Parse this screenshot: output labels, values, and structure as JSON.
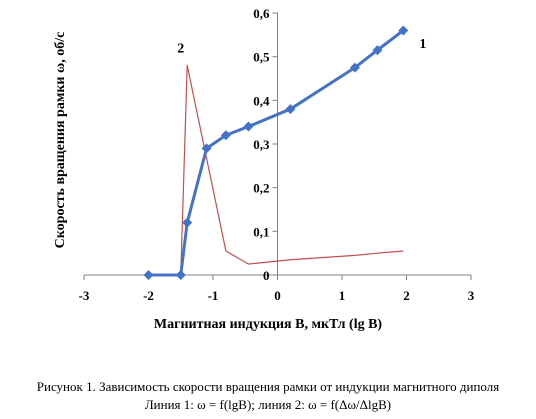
{
  "chart_data": {
    "type": "line",
    "title": "",
    "xlabel": "Магнитная индукция В, мкТл (lg B)",
    "ylabel": "Скорость вращения рамки ω, об/с",
    "xlim": [
      -3,
      3
    ],
    "ylim": [
      0,
      0.6
    ],
    "x_ticks": [
      "-3",
      "-2",
      "-1",
      "0",
      "1",
      "2",
      "3"
    ],
    "y_ticks": [
      "0",
      "0,1",
      "0,2",
      "0,3",
      "0,4",
      "0,5",
      "0,6"
    ],
    "grid": false,
    "series": [
      {
        "name": "1",
        "color": "#4472C4",
        "markers": true,
        "x": [
          -2.0,
          -1.5,
          -1.4,
          -1.1,
          -0.8,
          -0.45,
          0.2,
          1.2,
          1.55,
          1.95
        ],
        "y": [
          0.0,
          0.0,
          0.12,
          0.29,
          0.32,
          0.34,
          0.38,
          0.475,
          0.515,
          0.56
        ]
      },
      {
        "name": "2",
        "color": "#C0504D",
        "markers": false,
        "x": [
          -2.0,
          -1.5,
          -1.4,
          -0.8,
          -0.45,
          0.2,
          1.2,
          1.55,
          1.95
        ],
        "y": [
          0.0,
          0.0,
          0.48,
          0.055,
          0.025,
          0.035,
          0.045,
          0.05,
          0.055
        ]
      }
    ]
  },
  "caption": {
    "line1": "Рисунок 1. Зависимость скорости вращения рамки от индукции магнитного диполя",
    "line2": "Линия 1: ω  =  f(lgB); линия 2: ω  =  f(Δω/ΔlgB)"
  }
}
